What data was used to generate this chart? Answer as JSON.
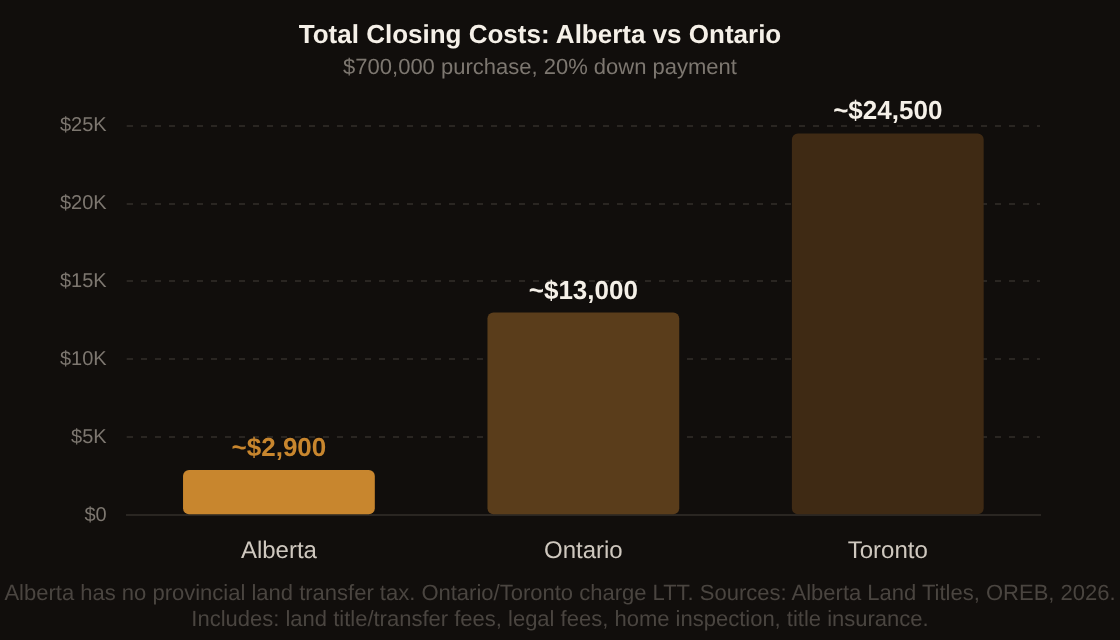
{
  "chart_data": {
    "type": "bar",
    "title": "Total Closing Costs: Alberta vs Ontario",
    "subtitle": "$700,000 purchase, 20% down payment",
    "categories": [
      "Alberta",
      "Ontario",
      "Toronto"
    ],
    "values": [
      2900,
      13000,
      24500
    ],
    "colors": [
      "#c8862e",
      "#5a3d1b",
      "#3f2a14"
    ],
    "value_labels": [
      "~$2,900",
      "~$13,000",
      "~$24,500"
    ],
    "ylim": [
      0,
      25000
    ],
    "yticks": [
      {
        "value": 0,
        "label": "$0"
      },
      {
        "value": 5000,
        "label": "$5K"
      },
      {
        "value": 10000,
        "label": "$10K"
      },
      {
        "value": 15000,
        "label": "$15K"
      },
      {
        "value": 20000,
        "label": "$20K"
      },
      {
        "value": 25000,
        "label": "$25K"
      }
    ],
    "grid": "y",
    "legend": false,
    "annotations": [
      "Alberta has no provincial land transfer tax. Ontario/Toronto charge LTT. Sources: Alberta Land Titles, OREB, 2026.",
      "Includes: land title/transfer fees, legal fees, home inspection, title insurance."
    ]
  }
}
